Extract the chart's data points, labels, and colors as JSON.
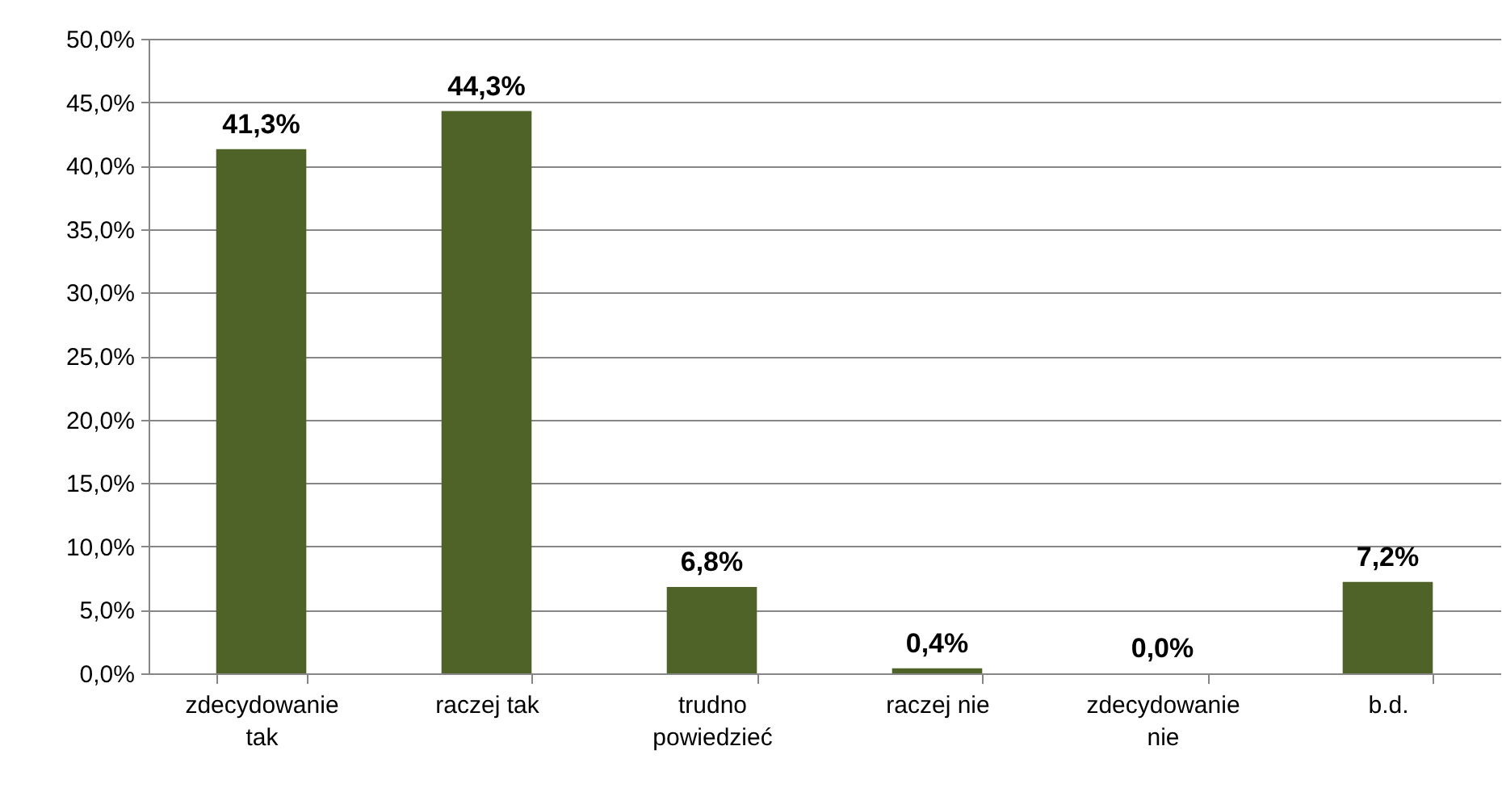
{
  "chart_data": {
    "type": "bar",
    "categories": [
      "zdecydowanie tak",
      "raczej tak",
      "trudno powiedzieć",
      "raczej nie",
      "zdecydowanie nie",
      "b.d."
    ],
    "values": [
      41.3,
      44.3,
      6.8,
      0.4,
      0.0,
      7.2
    ],
    "value_labels": [
      "41,3%",
      "44,3%",
      "6,8%",
      "0,4%",
      "0,0%",
      "7,2%"
    ],
    "color": "#4f6228",
    "ylim": [
      0,
      50
    ],
    "yticks": [
      {
        "value": 0,
        "label": "0,0%"
      },
      {
        "value": 5,
        "label": "5,0%"
      },
      {
        "value": 10,
        "label": "10,0%"
      },
      {
        "value": 15,
        "label": "15,0%"
      },
      {
        "value": 20,
        "label": "20,0%"
      },
      {
        "value": 25,
        "label": "25,0%"
      },
      {
        "value": 30,
        "label": "30,0%"
      },
      {
        "value": 35,
        "label": "35,0%"
      },
      {
        "value": 40,
        "label": "40,0%"
      },
      {
        "value": 45,
        "label": "45,0%"
      },
      {
        "value": 50,
        "label": "50,0%"
      }
    ],
    "grid": true
  }
}
